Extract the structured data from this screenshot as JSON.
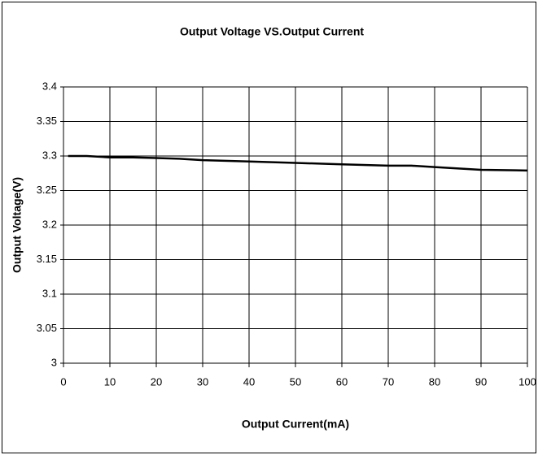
{
  "chart_data": {
    "type": "line",
    "title": "Output Voltage VS.Output Current",
    "x_label": "Output Current(mA)",
    "y_label": "Output Voltage(V)",
    "x": [
      1,
      5,
      10,
      15,
      20,
      25,
      30,
      40,
      50,
      60,
      70,
      75,
      80,
      90,
      100
    ],
    "series": [
      {
        "name": "Output Voltage",
        "color": "#000000",
        "values": [
          3.3,
          3.3,
          3.298,
          3.298,
          3.297,
          3.296,
          3.294,
          3.292,
          3.29,
          3.288,
          3.286,
          3.286,
          3.284,
          3.28,
          3.279
        ]
      }
    ],
    "xlim": [
      0,
      100
    ],
    "xticks": [
      0,
      10,
      20,
      30,
      40,
      50,
      60,
      70,
      80,
      90,
      100
    ],
    "ylim": [
      3,
      3.4
    ],
    "yticks": [
      3,
      3.05,
      3.1,
      3.15,
      3.2,
      3.25,
      3.3,
      3.35,
      3.4
    ],
    "grid": true
  }
}
